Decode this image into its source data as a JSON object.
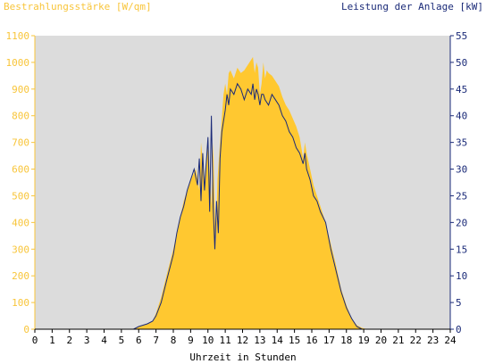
{
  "chart_data": {
    "type": "area",
    "title_left": "Bestrahlungsstärke [W/qm]",
    "title_right": "Leistung der Anlage [kW]",
    "xlabel": "Uhrzeit in Stunden",
    "xlim": [
      0,
      24
    ],
    "x_ticks": [
      "0",
      "1",
      "2",
      "3",
      "4",
      "5",
      "6",
      "7",
      "8",
      "9",
      "10",
      "11",
      "12",
      "13",
      "14",
      "15",
      "16",
      "17",
      "18",
      "19",
      "20",
      "21",
      "22",
      "23",
      "24"
    ],
    "y_left_lim": [
      0,
      1100
    ],
    "y_left_ticks": [
      "0",
      "100",
      "200",
      "300",
      "400",
      "500",
      "600",
      "700",
      "800",
      "900",
      "1000",
      "1100"
    ],
    "y_right_lim": [
      0,
      55
    ],
    "y_right_ticks": [
      "0",
      "5",
      "10",
      "15",
      "20",
      "25",
      "30",
      "35",
      "40",
      "45",
      "50",
      "55"
    ],
    "grid": false,
    "colors": {
      "left_axis": "#f8c53a",
      "right_axis": "#1a2a78",
      "plot_bg": "#dcdcdc",
      "area": "#ffc830"
    },
    "series": [
      {
        "name": "Bestrahlungsstärke [W/qm]",
        "axis": "left",
        "kind": "area",
        "x": [
          0,
          5.7,
          6.0,
          6.5,
          6.8,
          7.0,
          7.3,
          7.6,
          8.0,
          8.3,
          8.6,
          9.0,
          9.3,
          9.5,
          9.6,
          9.8,
          10.0,
          10.2,
          10.3,
          10.45,
          10.55,
          10.7,
          10.9,
          11.0,
          11.1,
          11.2,
          11.3,
          11.5,
          11.7,
          11.9,
          12.1,
          12.3,
          12.5,
          12.6,
          12.7,
          12.8,
          12.9,
          13.0,
          13.1,
          13.2,
          13.3,
          13.4,
          13.5,
          13.7,
          13.9,
          14.1,
          14.3,
          14.5,
          14.7,
          14.9,
          15.1,
          15.3,
          15.5,
          15.6,
          15.7,
          15.9,
          16.1,
          16.3,
          16.5,
          16.8,
          17.1,
          17.4,
          17.7,
          18.0,
          18.3,
          18.6,
          18.9,
          19.2,
          19.5,
          20.0,
          24
        ],
        "y": [
          0,
          0,
          10,
          20,
          30,
          60,
          120,
          200,
          300,
          390,
          480,
          560,
          600,
          520,
          700,
          560,
          720,
          460,
          700,
          320,
          560,
          700,
          880,
          920,
          880,
          960,
          970,
          940,
          980,
          960,
          970,
          990,
          1010,
          1020,
          960,
          1000,
          980,
          880,
          920,
          1000,
          940,
          970,
          960,
          950,
          930,
          910,
          870,
          840,
          820,
          790,
          760,
          720,
          640,
          700,
          660,
          600,
          540,
          500,
          460,
          400,
          320,
          240,
          150,
          90,
          40,
          15,
          5,
          0,
          0,
          0,
          0
        ]
      },
      {
        "name": "Leistung der Anlage [kW]",
        "axis": "right",
        "kind": "line",
        "x": [
          0,
          5.7,
          6.0,
          6.5,
          6.8,
          7.0,
          7.3,
          7.6,
          8.0,
          8.2,
          8.4,
          8.6,
          8.8,
          9.0,
          9.2,
          9.4,
          9.5,
          9.6,
          9.7,
          9.8,
          10.0,
          10.1,
          10.2,
          10.3,
          10.4,
          10.5,
          10.6,
          10.7,
          10.8,
          11.0,
          11.1,
          11.2,
          11.3,
          11.5,
          11.7,
          11.9,
          12.1,
          12.3,
          12.5,
          12.6,
          12.7,
          12.8,
          12.9,
          13.0,
          13.1,
          13.2,
          13.3,
          13.5,
          13.7,
          13.9,
          14.1,
          14.3,
          14.5,
          14.7,
          14.9,
          15.1,
          15.3,
          15.5,
          15.6,
          15.7,
          15.9,
          16.1,
          16.3,
          16.5,
          16.8,
          17.1,
          17.4,
          17.7,
          18.0,
          18.3,
          18.6,
          18.9,
          19.2,
          19.5,
          20.0,
          24
        ],
        "y": [
          0,
          0,
          0.5,
          1,
          1.5,
          2.5,
          5,
          9,
          14,
          18,
          21,
          23,
          26,
          28,
          30,
          27,
          32,
          24,
          33,
          26,
          36,
          22,
          40,
          23,
          15,
          24,
          18,
          32,
          37,
          41,
          44,
          42,
          45,
          44,
          46,
          45,
          43,
          45,
          44,
          46,
          43,
          45,
          44,
          42,
          44,
          44,
          43,
          42,
          44,
          43,
          42,
          40,
          39,
          37,
          36,
          34,
          33,
          31,
          33,
          30,
          28,
          25,
          24,
          22,
          20,
          15,
          11,
          7,
          4,
          2,
          0.5,
          0,
          0,
          0,
          0,
          0
        ]
      }
    ]
  }
}
